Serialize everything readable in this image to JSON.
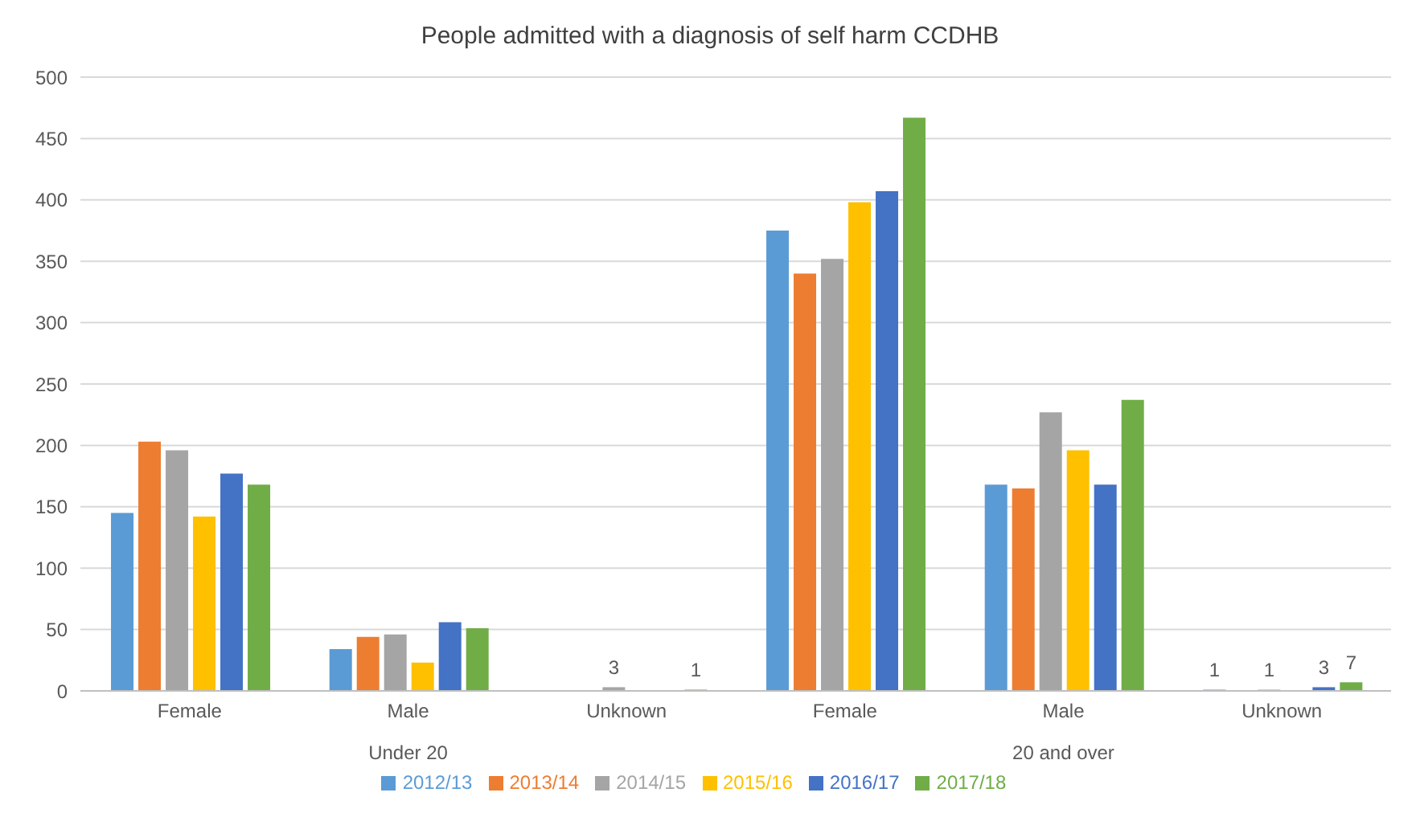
{
  "chart_data": {
    "type": "bar",
    "title": "People admitted with a diagnosis of self harm CCDHB",
    "categories": [
      "Female",
      "Male",
      "Unknown",
      "Female",
      "Male",
      "Unknown"
    ],
    "annotations": [
      "Under 20",
      "20 and over"
    ],
    "series": [
      {
        "name": "2012/13",
        "color": "#5b9bd5",
        "values": [
          145,
          34,
          null,
          375,
          168,
          1
        ],
        "value_labels": [
          null,
          null,
          null,
          null,
          null,
          "1"
        ]
      },
      {
        "name": "2013/14",
        "color": "#ed7d31",
        "values": [
          203,
          44,
          null,
          340,
          165,
          null
        ]
      },
      {
        "name": "2014/15",
        "color": "#a5a5a5",
        "values": [
          196,
          46,
          3,
          352,
          227,
          1
        ],
        "value_labels": [
          null,
          null,
          "3",
          null,
          null,
          "1"
        ]
      },
      {
        "name": "2015/16",
        "color": "#ffc000",
        "values": [
          142,
          23,
          null,
          398,
          196,
          null
        ]
      },
      {
        "name": "2016/17",
        "color": "#4472c4",
        "values": [
          177,
          56,
          null,
          407,
          168,
          3
        ],
        "value_labels": [
          null,
          null,
          null,
          null,
          null,
          "3"
        ]
      },
      {
        "name": "2017/18",
        "color": "#70ad47",
        "values": [
          168,
          51,
          1,
          467,
          237,
          7
        ],
        "value_labels": [
          null,
          null,
          "1",
          null,
          null,
          "7"
        ]
      }
    ],
    "ylim": [
      0,
      500
    ],
    "yticks": [
      0,
      50,
      100,
      150,
      200,
      250,
      300,
      350,
      400,
      450,
      500
    ],
    "grid": "y",
    "legend": "bottom"
  }
}
